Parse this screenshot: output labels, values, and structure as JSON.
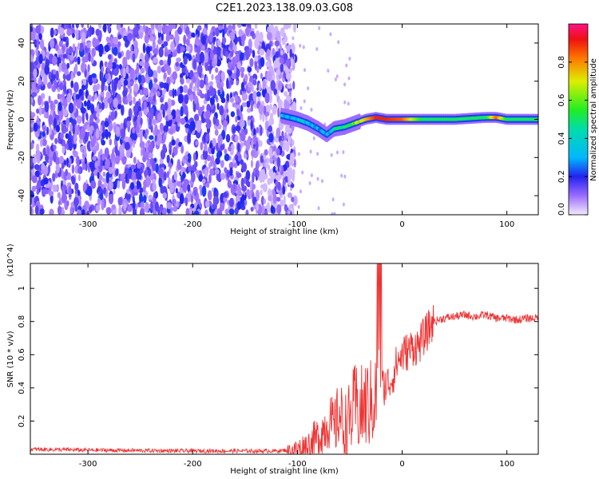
{
  "title": "C2E1.2023.138.09.03.G08",
  "chart_data": [
    {
      "type": "heatmap",
      "xlabel": "Height of straight line (km)",
      "ylabel": "Frequency (Hz)",
      "xlim": [
        -355,
        130
      ],
      "ylim": [
        -50,
        50
      ],
      "xticks": [
        -300,
        -200,
        -100,
        0,
        100
      ],
      "yticks": [
        -40,
        -20,
        0,
        20,
        40
      ],
      "colorbar": {
        "label": "Normalized spectral amplitude",
        "range": [
          0.0,
          1.0
        ],
        "ticks": [
          0.0,
          0.2,
          0.4,
          0.6,
          0.8
        ]
      },
      "signal_trace": {
        "x": [
          -115,
          -100,
          -90,
          -80,
          -72,
          -65,
          -55,
          -45,
          -35,
          -25,
          -15,
          0,
          20,
          50,
          80,
          90,
          100,
          130
        ],
        "y": [
          2,
          0,
          -2,
          -5,
          -8,
          -5,
          -4,
          -2,
          0,
          1,
          0,
          0,
          0,
          0,
          1,
          1,
          0,
          0
        ],
        "amplitude": [
          0.3,
          0.35,
          0.35,
          0.3,
          0.3,
          0.4,
          0.5,
          0.6,
          0.75,
          0.9,
          0.9,
          0.85,
          0.5,
          0.5,
          0.5,
          0.85,
          0.5,
          0.5
        ]
      },
      "noise_region_x": [
        -355,
        -110
      ]
    },
    {
      "type": "line",
      "xlabel": "Height of straight line (km)",
      "ylabel": "SNR (10 * v/v)",
      "y_multiplier": "(x10^4)",
      "xlim": [
        -355,
        130
      ],
      "ylim": [
        0,
        1.15
      ],
      "xticks": [
        -300,
        -200,
        -100,
        0,
        100
      ],
      "yticks": [
        0.2,
        0.4,
        0.6,
        0.8,
        1
      ],
      "series": [
        {
          "color": "#ee3333",
          "x": [
            -355,
            -300,
            -200,
            -120,
            -100,
            -90,
            -80,
            -75,
            -70,
            -65,
            -60,
            -55,
            -50,
            -45,
            -40,
            -35,
            -30,
            -25,
            -20,
            -15,
            -10,
            -5,
            0,
            5,
            10,
            15,
            20,
            25,
            30,
            35,
            40,
            50,
            60,
            70,
            80,
            90,
            100,
            110,
            120,
            130
          ],
          "y": [
            0.03,
            0.025,
            0.02,
            0.02,
            0.03,
            0.05,
            0.1,
            0.15,
            0.2,
            0.15,
            0.25,
            0.15,
            0.2,
            0.3,
            0.25,
            0.3,
            0.3,
            0.35,
            0.4,
            0.42,
            0.45,
            0.55,
            0.6,
            0.62,
            0.65,
            0.65,
            0.7,
            0.75,
            0.8,
            0.81,
            0.82,
            0.83,
            0.84,
            0.83,
            0.84,
            0.82,
            0.82,
            0.81,
            0.82,
            0.82
          ]
        }
      ],
      "annotations": [
        {
          "x": -22,
          "y": 1.15,
          "text": ""
        }
      ]
    }
  ]
}
